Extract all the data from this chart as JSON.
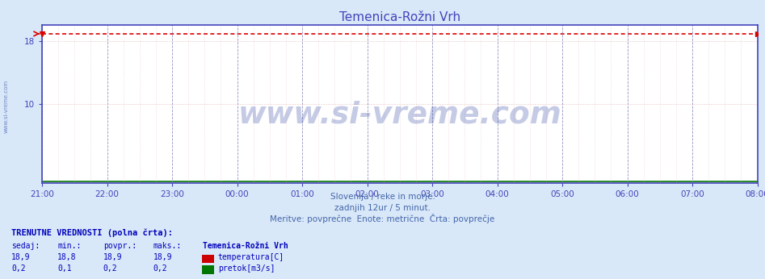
{
  "title": "Temenica-Rožni Vrh",
  "title_color": "#4444bb",
  "bg_color": "#d8e8f8",
  "plot_bg_color": "#ffffff",
  "grid_color_major_x": "#8888bb",
  "grid_color_minor_x": "#ddaaaa",
  "grid_color_y": "#ddaaaa",
  "x_tick_labels": [
    "21:00",
    "22:00",
    "23:00",
    "00:00",
    "01:00",
    "02:00",
    "03:00",
    "04:00",
    "05:00",
    "06:00",
    "07:00",
    "08:00"
  ],
  "x_tick_positions": [
    0,
    12,
    24,
    36,
    48,
    60,
    72,
    84,
    96,
    108,
    120,
    132
  ],
  "n_points": 145,
  "temp_value": 18.9,
  "flow_value": 0.2,
  "y_min": 0,
  "y_max": 20.0,
  "y_ticks": [
    10,
    18
  ],
  "temp_color": "#dd0000",
  "flow_color": "#007700",
  "axis_color": "#4444bb",
  "tick_label_color": "#4444bb",
  "watermark_text": "www.si-vreme.com",
  "watermark_color": "#1a3399",
  "watermark_alpha": 0.25,
  "left_label": "www.si-vreme.com",
  "subtitle_line1": "Slovenija / reke in morje.",
  "subtitle_line2": "zadnjih 12ur / 5 minut.",
  "subtitle_line3": "Meritve: povprečne  Enote: metrične  Črta: povprečje",
  "subtitle_color": "#4466aa",
  "table_header": "TRENUTNE VREDNOSTI (polna črta):",
  "table_col_headers": [
    "sedaj:",
    "min.:",
    "povpr.:",
    "maks.:"
  ],
  "table_station": "Temenica-Rožni Vrh",
  "table_temp_row": [
    "18,9",
    "18,8",
    "18,9",
    "18,9"
  ],
  "table_flow_row": [
    "0,2",
    "0,1",
    "0,2",
    "0,2"
  ],
  "table_temp_label": "temperatura[C]",
  "table_flow_label": "pretok[m3/s]",
  "table_color": "#0000bb",
  "temp_swatch_color": "#cc0000",
  "flow_swatch_color": "#007700"
}
